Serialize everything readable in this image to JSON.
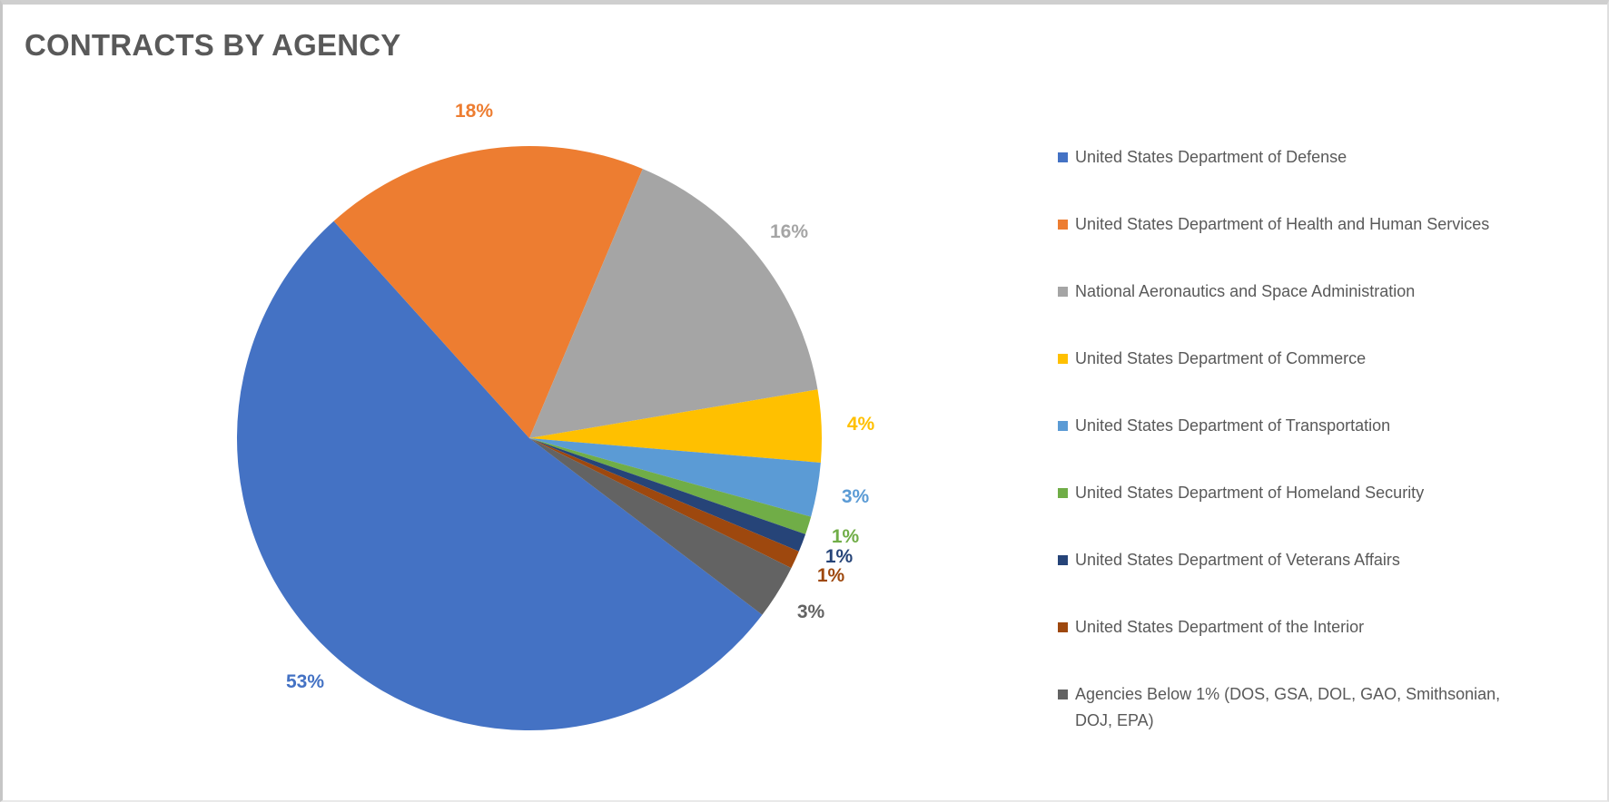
{
  "window": {
    "background": "#FFFFFF",
    "frame_color": "#CFCFCF",
    "text_color": "#595959"
  },
  "chart_data": {
    "type": "pie",
    "title": "CONTRACTS BY AGENCY",
    "title_color": "#595959",
    "legend_position": "right",
    "legend_text_color": "#595959",
    "rotation_deg": 127.2,
    "labels_style": "outside-end, percentage, colored to match slice",
    "slices": [
      {
        "label": "United States Department of Defense",
        "value": 53,
        "pct_label": "53%",
        "color": "#4472C4"
      },
      {
        "label": "United States Department of Health and Human Services",
        "value": 18,
        "pct_label": "18%",
        "color": "#ED7D31"
      },
      {
        "label": "National Aeronautics and Space Administration",
        "value": 16,
        "pct_label": "16%",
        "color": "#A5A5A5"
      },
      {
        "label": "United States Department of Commerce",
        "value": 4,
        "pct_label": "4%",
        "color": "#FFC000"
      },
      {
        "label": "United States Department of Transportation",
        "value": 3,
        "pct_label": "3%",
        "color": "#5B9BD5"
      },
      {
        "label": "United States Department of Homeland Security",
        "value": 1,
        "pct_label": "1%",
        "color": "#70AD47"
      },
      {
        "label": "United States Department of Veterans Affairs",
        "value": 1,
        "pct_label": "1%",
        "color": "#264478"
      },
      {
        "label": "United States Department of the Interior",
        "value": 1,
        "pct_label": "1%",
        "color": "#9E480E"
      },
      {
        "label": "Agencies Below 1% (DOS, GSA, DOL, GAO, Smithsonian,\nDOJ, EPA)",
        "value": 3,
        "pct_label": "3%",
        "color": "#636363"
      }
    ]
  }
}
